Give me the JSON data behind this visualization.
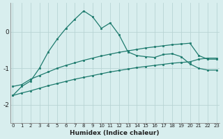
{
  "xlabel": "Humidex (Indice chaleur)",
  "x": [
    0,
    1,
    2,
    3,
    4,
    5,
    6,
    7,
    8,
    9,
    10,
    11,
    12,
    13,
    14,
    15,
    16,
    17,
    18,
    19,
    20,
    21,
    22,
    23
  ],
  "line1": [
    -1.75,
    -1.5,
    -1.35,
    -1.0,
    -0.55,
    -0.2,
    0.1,
    0.35,
    0.58,
    0.42,
    0.1,
    0.25,
    -0.08,
    -0.55,
    -0.65,
    -0.68,
    -0.7,
    -0.62,
    -0.6,
    -0.68,
    -0.88,
    -1.0,
    -1.05,
    -1.05
  ],
  "line2": [
    -1.5,
    -1.45,
    -1.3,
    -1.2,
    -1.1,
    -1.0,
    -0.92,
    -0.85,
    -0.78,
    -0.72,
    -0.66,
    -0.61,
    -0.56,
    -0.52,
    -0.48,
    -0.44,
    -0.41,
    -0.38,
    -0.35,
    -0.33,
    -0.31,
    -0.65,
    -0.75,
    -0.75
  ],
  "line3": [
    -1.75,
    -1.68,
    -1.62,
    -1.55,
    -1.48,
    -1.42,
    -1.36,
    -1.3,
    -1.25,
    -1.2,
    -1.15,
    -1.1,
    -1.06,
    -1.02,
    -0.98,
    -0.95,
    -0.92,
    -0.89,
    -0.86,
    -0.84,
    -0.82,
    -0.75,
    -0.72,
    -0.72
  ],
  "bg_color": "#d8eeee",
  "grid_color": "#b8d4d4",
  "line_color": "#1e7b6e",
  "ylim": [
    -2.5,
    0.8
  ],
  "yticks": [
    -2,
    -1,
    0
  ],
  "xlim": [
    -0.3,
    23.3
  ],
  "figsize": [
    3.2,
    2.0
  ],
  "dpi": 100
}
